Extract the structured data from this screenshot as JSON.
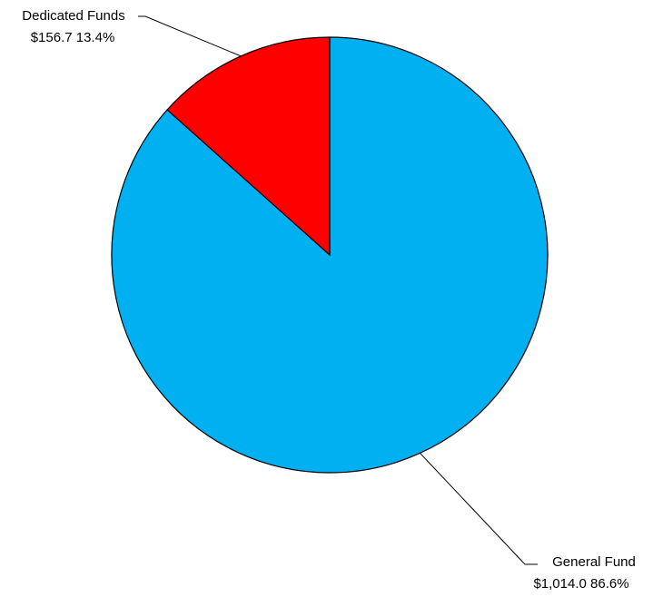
{
  "chart_data": {
    "type": "pie",
    "slices": [
      {
        "name": "General Fund",
        "value": 1014.0,
        "value_label": "$1,014.0",
        "percent_label": "86.6%",
        "color": "#00B0F0"
      },
      {
        "name": "Dedicated Funds",
        "value": 156.7,
        "value_label": "$156.7",
        "percent_label": "13.4%",
        "color": "#FF0000"
      }
    ],
    "legend": "none",
    "data_labels": "outside-with-leader-lines"
  }
}
